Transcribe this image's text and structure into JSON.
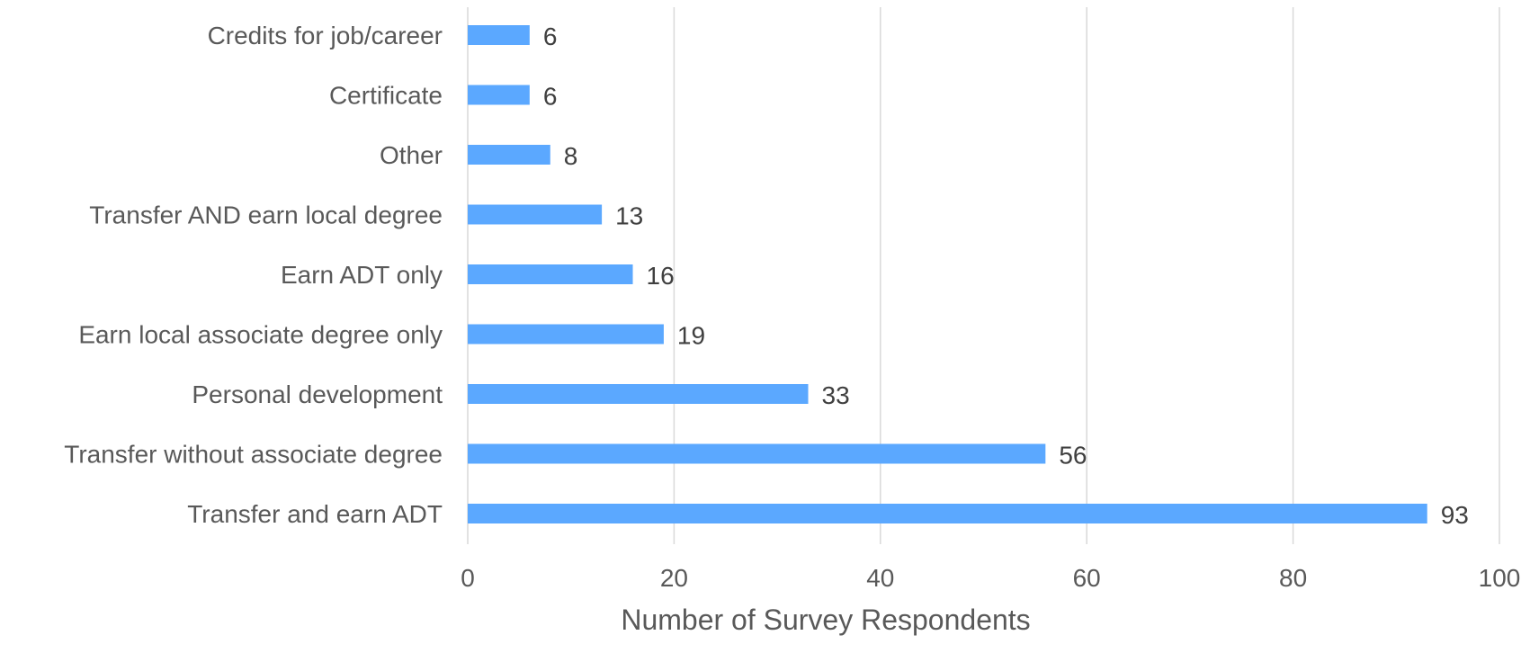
{
  "chart_data": {
    "type": "bar",
    "orientation": "horizontal",
    "categories": [
      "Credits for job/career",
      "Certificate",
      "Other",
      "Transfer AND earn local degree",
      "Earn ADT only",
      "Earn local associate degree only",
      "Personal development",
      "Transfer without associate degree",
      "Transfer and earn ADT"
    ],
    "values": [
      6,
      6,
      8,
      13,
      16,
      19,
      33,
      56,
      93
    ],
    "title": "",
    "xlabel": "Number of Survey Respondents",
    "ylabel": "",
    "xlim": [
      0,
      100
    ],
    "xticks": [
      0,
      20,
      40,
      60,
      80,
      100
    ],
    "xtick_labels": [
      "0",
      "20",
      "40",
      "60",
      "80",
      "100"
    ],
    "data_labels": [
      "6",
      "6",
      "8",
      "13",
      "16",
      "19",
      "33",
      "56",
      "93"
    ],
    "grid": "vertical",
    "legend": "none",
    "bar_color": "#5BA8FF",
    "gridline_color": "#d9d9d9",
    "text_color": "#595959"
  }
}
